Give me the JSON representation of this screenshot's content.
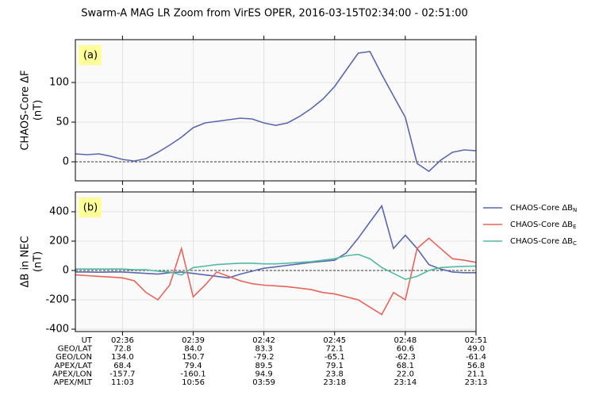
{
  "title": "Swarm-A MAG LR Zoom from VirES OPER, 2016-03-15T02:34:00 - 02:51:00",
  "chart_data": [
    {
      "type": "line",
      "annotation": "(a)",
      "ylabel": [
        "CHAOS-Core ΔF",
        "(nT)"
      ],
      "x": [
        "02:34:00",
        "02:34:30",
        "02:35:00",
        "02:35:30",
        "02:36:00",
        "02:36:30",
        "02:37:00",
        "02:37:30",
        "02:38:00",
        "02:38:30",
        "02:39:00",
        "02:39:30",
        "02:40:00",
        "02:40:30",
        "02:41:00",
        "02:41:30",
        "02:42:00",
        "02:42:30",
        "02:43:00",
        "02:43:30",
        "02:44:00",
        "02:44:30",
        "02:45:00",
        "02:45:30",
        "02:46:00",
        "02:46:30",
        "02:47:00",
        "02:47:30",
        "02:48:00",
        "02:48:30",
        "02:49:00",
        "02:49:30",
        "02:50:00",
        "02:50:30",
        "02:51:00"
      ],
      "series": [
        {
          "color": "#5b67ae",
          "values": [
            10,
            9,
            10,
            7,
            3,
            1,
            4,
            12,
            21,
            31,
            43,
            49,
            51,
            53,
            55,
            54,
            49,
            46,
            49,
            57,
            67,
            79,
            95,
            116,
            137,
            139,
            110,
            83,
            56,
            -2,
            -12,
            2,
            12,
            15,
            14
          ]
        }
      ],
      "xlim": [
        "02:34",
        "02:51"
      ],
      "xticks": [
        "02:36",
        "02:39",
        "02:42",
        "02:45",
        "02:48",
        "02:51"
      ],
      "ylim": [
        -24,
        154
      ],
      "yticks": [
        0,
        50,
        100
      ],
      "zero_line": 0,
      "grid": true
    },
    {
      "type": "line",
      "annotation": "(b)",
      "ylabel": [
        "ΔB in NEC",
        "(nT)"
      ],
      "legend": "outside right",
      "x": [
        "02:34:00",
        "02:34:30",
        "02:35:00",
        "02:35:30",
        "02:36:00",
        "02:36:30",
        "02:37:00",
        "02:37:30",
        "02:38:00",
        "02:38:30",
        "02:39:00",
        "02:39:30",
        "02:40:00",
        "02:40:30",
        "02:41:00",
        "02:41:30",
        "02:42:00",
        "02:42:30",
        "02:43:00",
        "02:43:30",
        "02:44:00",
        "02:44:30",
        "02:45:00",
        "02:45:30",
        "02:46:00",
        "02:46:30",
        "02:47:00",
        "02:47:30",
        "02:48:00",
        "02:48:30",
        "02:49:00",
        "02:49:30",
        "02:50:00",
        "02:50:30",
        "02:51:00"
      ],
      "series": [
        {
          "name": "CHAOS-Core ΔBN",
          "color": "#5b67ae",
          "values": [
            -10,
            -10,
            -12,
            -10,
            -10,
            -15,
            -20,
            -25,
            -15,
            -10,
            -20,
            -30,
            -40,
            -50,
            -25,
            -5,
            15,
            25,
            35,
            45,
            55,
            62,
            70,
            120,
            220,
            330,
            440,
            150,
            240,
            150,
            40,
            10,
            -10,
            -15,
            -15
          ]
        },
        {
          "name": "CHAOS-Core ΔBE",
          "color": "#e8645a",
          "values": [
            -30,
            -35,
            -40,
            -45,
            -50,
            -70,
            -150,
            -200,
            -100,
            150,
            -180,
            -100,
            -10,
            -40,
            -70,
            -90,
            -100,
            -105,
            -110,
            -120,
            -130,
            -150,
            -160,
            -180,
            -200,
            -250,
            -300,
            -150,
            -200,
            150,
            220,
            150,
            80,
            70,
            55
          ]
        },
        {
          "name": "CHAOS-Core ΔBC",
          "color": "#52bba0",
          "values": [
            10,
            10,
            10,
            10,
            10,
            5,
            5,
            -5,
            -10,
            -30,
            20,
            30,
            40,
            45,
            50,
            50,
            45,
            45,
            50,
            55,
            60,
            70,
            80,
            100,
            110,
            80,
            20,
            -20,
            -60,
            -40,
            0,
            20,
            25,
            28,
            30
          ]
        }
      ],
      "xlim": [
        "02:34",
        "02:51"
      ],
      "xticks": [
        "02:36",
        "02:39",
        "02:42",
        "02:45",
        "02:48",
        "02:51"
      ],
      "xlabel": "UT",
      "tick_table": [
        {
          "label": "GEO/LAT",
          "values": [
            "72.8",
            "84.0",
            "83.3",
            "72.1",
            "60.6",
            "49.0"
          ]
        },
        {
          "label": "GEO/LON",
          "values": [
            "134.0",
            "150.7",
            "-79.2",
            "-65.1",
            "-62.3",
            "-61.4"
          ]
        },
        {
          "label": "APEX/LAT",
          "values": [
            "68.4",
            "79.4",
            "89.5",
            "79.1",
            "68.1",
            "56.8"
          ]
        },
        {
          "label": "APEX/LON",
          "values": [
            "-157.7",
            "-160.1",
            "94.9",
            "23.8",
            "22.0",
            "21.1"
          ]
        },
        {
          "label": "APEX/MLT",
          "values": [
            "11:03",
            "10:56",
            "03:59",
            "23:18",
            "23:14",
            "23:13"
          ]
        }
      ],
      "ylim": [
        -416,
        535
      ],
      "yticks": [
        -400,
        -200,
        0,
        200,
        400
      ],
      "zero_line": 0,
      "grid": true
    }
  ]
}
